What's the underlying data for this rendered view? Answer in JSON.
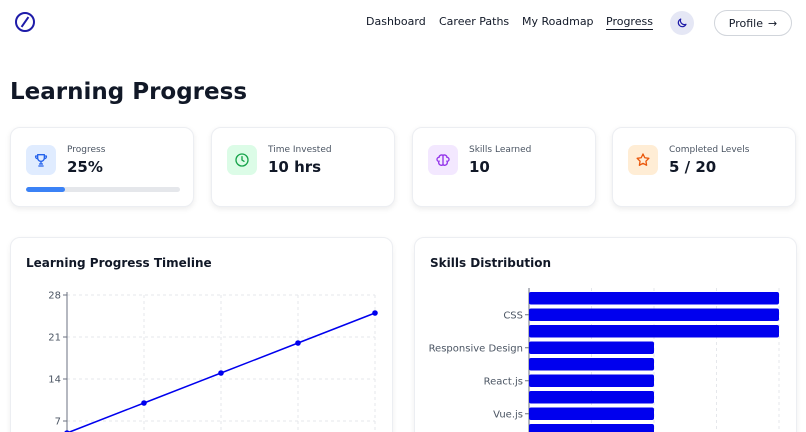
{
  "nav": {
    "links": [
      "Dashboard",
      "Career Paths",
      "My Roadmap",
      "Progress"
    ],
    "active": "Progress",
    "profile_label": "Profile",
    "profile_arrow": "→"
  },
  "page": {
    "title": "Learning Progress"
  },
  "stats": [
    {
      "label": "Progress",
      "value": "25%",
      "icon": "trophy-icon",
      "progress": 0.25
    },
    {
      "label": "Time Invested",
      "value": "10 hrs",
      "icon": "clock-icon"
    },
    {
      "label": "Skills Learned",
      "value": "10",
      "icon": "brain-icon"
    },
    {
      "label": "Completed Levels",
      "value": "5 / 20",
      "icon": "star-icon"
    }
  ],
  "colors": {
    "accent": "#1e1ba8",
    "chart": "#0000ee",
    "progress": "#3b82f6"
  },
  "chart_data": [
    {
      "type": "line",
      "title": "Learning Progress Timeline",
      "x": [
        0,
        1,
        2,
        3,
        4
      ],
      "y": [
        5,
        10,
        15,
        20,
        25
      ],
      "yticks": [
        "7",
        "14",
        "21",
        "28"
      ],
      "ylim": [
        0,
        28
      ],
      "grid": true
    },
    {
      "type": "bar",
      "orientation": "horizontal",
      "title": "Skills Distribution",
      "categories": [
        "",
        "CSS",
        "",
        "Responsive Design",
        "",
        "React.js",
        "",
        "Vue.js",
        ""
      ],
      "values": [
        100,
        100,
        100,
        50,
        50,
        50,
        50,
        50,
        50
      ],
      "grid": true
    }
  ]
}
